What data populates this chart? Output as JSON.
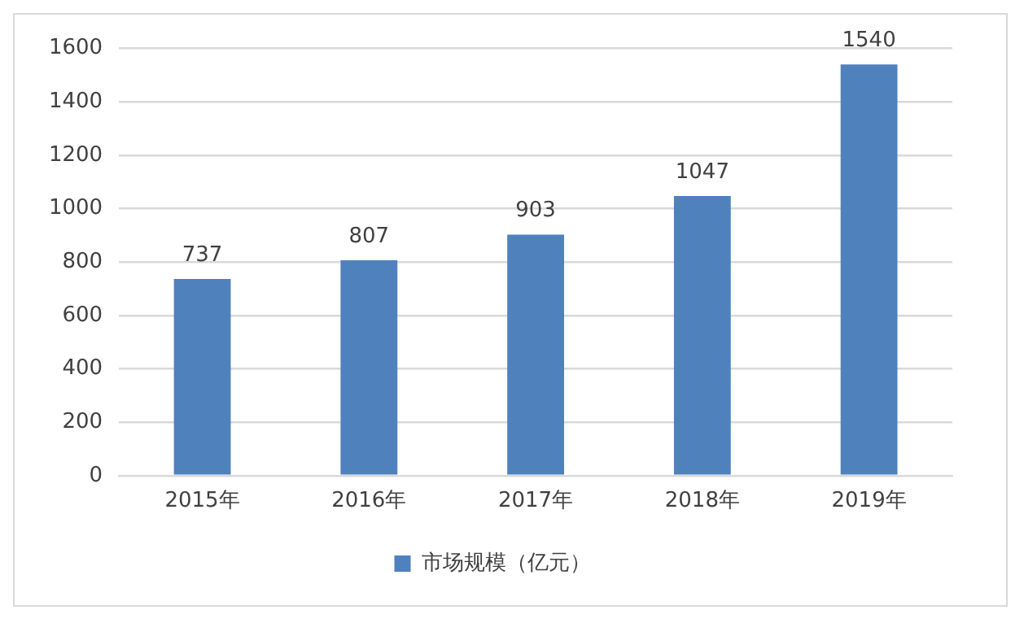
{
  "chart_data": {
    "type": "bar",
    "categories": [
      "2015年",
      "2016年",
      "2017年",
      "2018年",
      "2019年"
    ],
    "series": [
      {
        "name": "市场规模（亿元）",
        "color": "#4f81bd",
        "values": [
          737,
          807,
          903,
          1047,
          1540
        ]
      }
    ],
    "ylim": [
      0,
      1600
    ],
    "yticks": [
      0,
      200,
      400,
      600,
      800,
      1000,
      1200,
      1400,
      1600
    ],
    "grid": "y",
    "legend": "bottom",
    "data_labels": true
  }
}
